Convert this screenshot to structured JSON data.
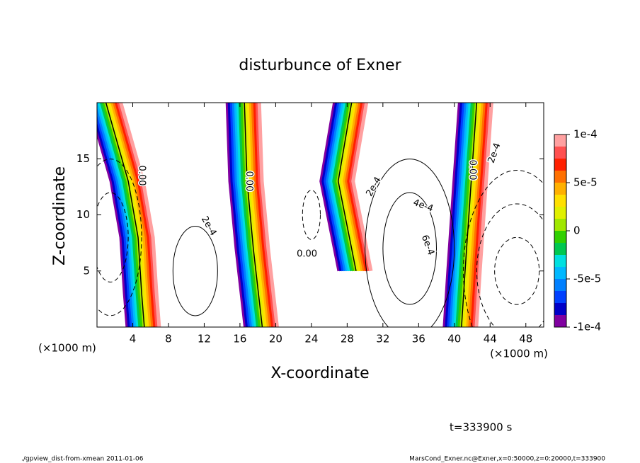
{
  "chart_data": {
    "type": "contour",
    "title": "disturbunce of Exner",
    "x_label": "X-coordinate",
    "y_label": "Z-coordinate",
    "x_unit": "(×1000 m)",
    "xlim": [
      0,
      50
    ],
    "xticks": [
      4,
      8,
      12,
      16,
      20,
      24,
      28,
      32,
      36,
      40,
      44,
      48
    ],
    "ylim": [
      0,
      20
    ],
    "yticks": [
      5,
      10,
      15
    ],
    "colorbar": {
      "clim": [
        -0.0001,
        0.0001
      ],
      "ticks": [
        {
          "value": 0.0001,
          "label": "1e-4"
        },
        {
          "value": 5e-05,
          "label": "5e-5"
        },
        0,
        {
          "value": -5e-05,
          "label": "-5e-5"
        },
        {
          "value": -0.0001,
          "label": "-1e-4"
        }
      ],
      "colors": [
        "#8000a0",
        "#0000c8",
        "#0040ff",
        "#0080ff",
        "#00b8ff",
        "#00e0e0",
        "#00c850",
        "#30d000",
        "#a0e800",
        "#e0f000",
        "#ffe000",
        "#ffb000",
        "#ff7000",
        "#ff2000",
        "#ff5050",
        "#ffa0a0"
      ]
    },
    "contour_labels": [
      "0.00",
      "0.00",
      "0.00",
      "0.00",
      "2e-4",
      "2e-4",
      "2e-4",
      "4e-4",
      "6e-4"
    ],
    "notes": [
      "t=333900 s",
      "./gpview_dist-from-xmean  2011-01-06",
      "MarsCond_Exner.nc@Exner,x=0:50000,z=0:20000,t=333900"
    ]
  }
}
